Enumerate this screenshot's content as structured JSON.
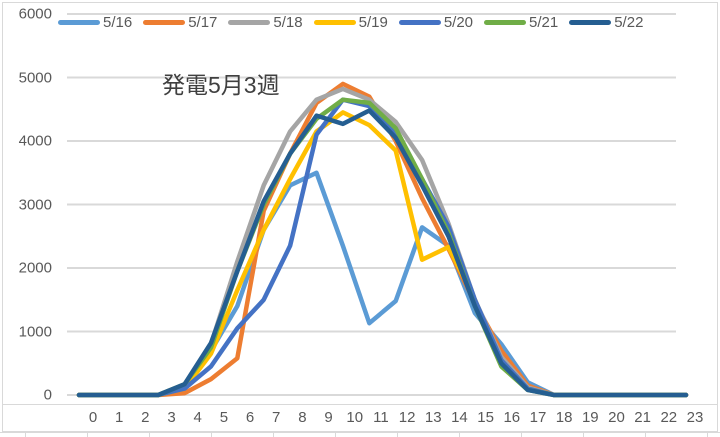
{
  "chart_data": {
    "type": "line",
    "title": "発電5月3週",
    "xlabel": "",
    "ylabel": "",
    "ylim": [
      0,
      6000
    ],
    "yticks": [
      0,
      1000,
      2000,
      3000,
      4000,
      5000,
      6000
    ],
    "grid": true,
    "legend_position": "top",
    "categories": [
      "0",
      "1",
      "2",
      "3",
      "4",
      "5",
      "6",
      "7",
      "8",
      "9",
      "10",
      "11",
      "12",
      "13",
      "14",
      "15",
      "16",
      "17",
      "18",
      "19",
      "20",
      "21",
      "22",
      "23"
    ],
    "series": [
      {
        "name": "5/16",
        "color": "#5B9BD5",
        "values": [
          0,
          0,
          0,
          0,
          100,
          700,
          1400,
          2600,
          3300,
          3500,
          2350,
          1130,
          1480,
          2640,
          2350,
          1290,
          800,
          200,
          0,
          0,
          0,
          0,
          0,
          0
        ]
      },
      {
        "name": "5/17",
        "color": "#ED7D31",
        "values": [
          0,
          0,
          0,
          0,
          30,
          250,
          580,
          2900,
          3800,
          4600,
          4900,
          4700,
          4000,
          3100,
          2300,
          1450,
          700,
          150,
          0,
          0,
          0,
          0,
          0,
          0
        ]
      },
      {
        "name": "5/18",
        "color": "#A5A5A5",
        "values": [
          0,
          0,
          0,
          0,
          150,
          800,
          2100,
          3300,
          4150,
          4650,
          4820,
          4650,
          4300,
          3700,
          2700,
          1500,
          600,
          120,
          0,
          0,
          0,
          0,
          0,
          0
        ]
      },
      {
        "name": "5/19",
        "color": "#FFC000",
        "values": [
          0,
          0,
          0,
          0,
          100,
          650,
          1650,
          2600,
          3400,
          4150,
          4450,
          4250,
          3850,
          2130,
          2330,
          1500,
          500,
          100,
          0,
          0,
          0,
          0,
          0,
          0
        ]
      },
      {
        "name": "5/20",
        "color": "#4472C4",
        "values": [
          0,
          0,
          0,
          0,
          100,
          450,
          1050,
          1500,
          2350,
          4100,
          4650,
          4550,
          4100,
          3400,
          2650,
          1500,
          550,
          100,
          0,
          0,
          0,
          0,
          0,
          0
        ]
      },
      {
        "name": "5/21",
        "color": "#70AD47",
        "values": [
          0,
          0,
          0,
          0,
          170,
          750,
          1950,
          3000,
          3800,
          4350,
          4650,
          4600,
          4200,
          3400,
          2550,
          1400,
          450,
          80,
          0,
          0,
          0,
          0,
          0,
          0
        ]
      },
      {
        "name": "5/22",
        "color": "#255E91",
        "values": [
          0,
          0,
          0,
          0,
          170,
          820,
          1950,
          3050,
          3800,
          4400,
          4270,
          4480,
          4050,
          3300,
          2500,
          1400,
          500,
          80,
          0,
          0,
          0,
          0,
          0,
          0
        ]
      }
    ]
  },
  "axis": {
    "x_labels": [
      "0",
      "1",
      "2",
      "3",
      "4",
      "5",
      "6",
      "7",
      "8",
      "9",
      "10",
      "11",
      "12",
      "13",
      "14",
      "15",
      "16",
      "17",
      "18",
      "19",
      "20",
      "21",
      "22",
      "23"
    ],
    "y_labels": [
      "0",
      "1000",
      "2000",
      "3000",
      "4000",
      "5000",
      "6000"
    ]
  }
}
